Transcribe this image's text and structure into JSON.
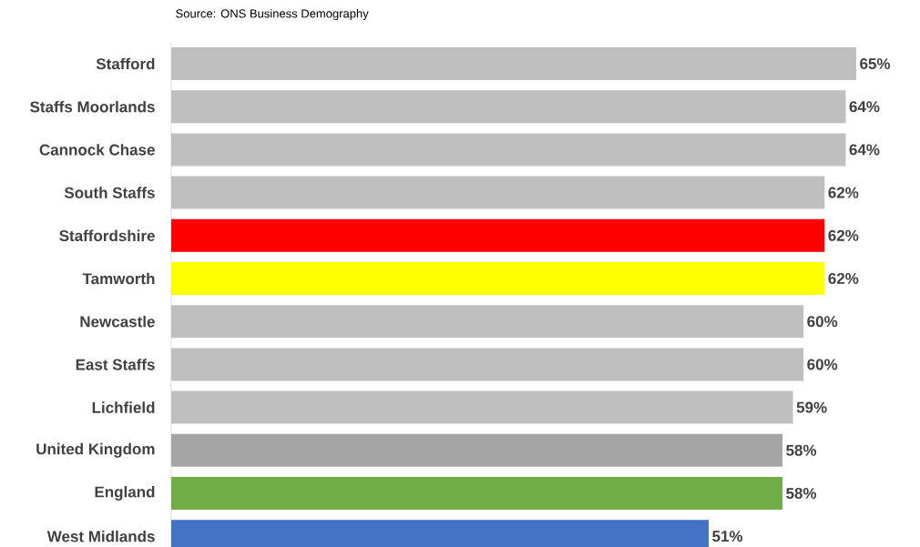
{
  "chart_data": {
    "type": "bar",
    "orientation": "horizontal",
    "annotations": [
      "Source: ONS Business Demography"
    ],
    "categories": [
      "Stafford",
      "Staffs Moorlands",
      "Cannock Chase",
      "South Staffs",
      "Staffordshire",
      "Tamworth",
      "Newcastle",
      "East Staffs",
      "Lichfield",
      "United Kingdom",
      "England",
      "West Midlands"
    ],
    "values": [
      65,
      64,
      64,
      62,
      62,
      62,
      60,
      60,
      59,
      58,
      58,
      51
    ],
    "value_labels": [
      "65%",
      "64%",
      "64%",
      "62%",
      "62%",
      "62%",
      "60%",
      "60%",
      "59%",
      "58%",
      "58%",
      "51%"
    ],
    "colors": [
      "#bfbfbf",
      "#bfbfbf",
      "#bfbfbf",
      "#bfbfbf",
      "#ff0000",
      "#ffff00",
      "#bfbfbf",
      "#bfbfbf",
      "#bfbfbf",
      "#a5a5a5",
      "#70ad47",
      "#4472c4"
    ]
  }
}
